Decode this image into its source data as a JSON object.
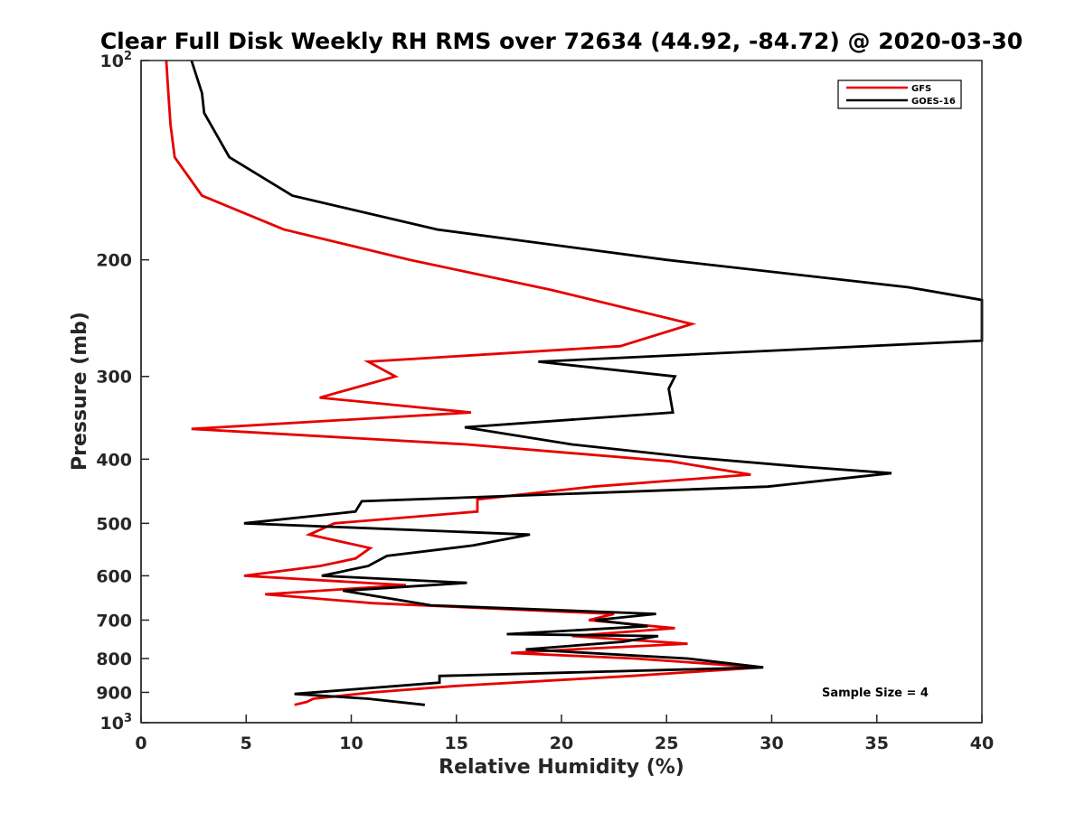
{
  "chart_data": {
    "type": "line",
    "title": "Clear Full Disk Weekly RH RMS over 72634 (44.92, -84.72) @ 2020-03-30",
    "xlabel": "Relative Humidity (%)",
    "ylabel": "Pressure (mb)",
    "xlim": [
      0,
      40
    ],
    "ylim": [
      100,
      1000
    ],
    "yscale": "log",
    "y_reversed": true,
    "xticks": [
      0,
      5,
      10,
      15,
      20,
      25,
      30,
      35,
      40
    ],
    "xtick_labels": [
      "0",
      "5",
      "10",
      "15",
      "20",
      "25",
      "30",
      "35",
      "40"
    ],
    "yticks": [
      {
        "value": 100,
        "base": "10",
        "exp": "2"
      },
      {
        "value": 200,
        "label": "200"
      },
      {
        "value": 300,
        "label": "300"
      },
      {
        "value": 400,
        "label": "400"
      },
      {
        "value": 500,
        "label": "500"
      },
      {
        "value": 600,
        "label": "600"
      },
      {
        "value": 700,
        "label": "700"
      },
      {
        "value": 800,
        "label": "800"
      },
      {
        "value": 900,
        "label": "900"
      },
      {
        "value": 1000,
        "base": "10",
        "exp": "3"
      }
    ],
    "legend_position": "top-right",
    "annotation": "Sample Size = 4",
    "series": [
      {
        "name": "GFS",
        "color": "#e60000",
        "points": [
          [
            1.2,
            100
          ],
          [
            1.3,
            112
          ],
          [
            1.4,
            125
          ],
          [
            1.6,
            140
          ],
          [
            2.9,
            160
          ],
          [
            6.8,
            180
          ],
          [
            12.8,
            200
          ],
          [
            19.5,
            222
          ],
          [
            26.2,
            250
          ],
          [
            22.8,
            270
          ],
          [
            10.8,
            285
          ],
          [
            12.1,
            300
          ],
          [
            8.5,
            323
          ],
          [
            15.7,
            340
          ],
          [
            2.4,
            360
          ],
          [
            15.5,
            380
          ],
          [
            25.2,
            403
          ],
          [
            29.0,
            422
          ],
          [
            21.5,
            440
          ],
          [
            16.0,
            460
          ],
          [
            16.0,
            480
          ],
          [
            9.2,
            500
          ],
          [
            8.0,
            520
          ],
          [
            10.9,
            545
          ],
          [
            10.2,
            565
          ],
          [
            8.5,
            580
          ],
          [
            4.9,
            600
          ],
          [
            12.6,
            620
          ],
          [
            5.9,
            640
          ],
          [
            11.0,
            660
          ],
          [
            22.5,
            685
          ],
          [
            21.3,
            700
          ],
          [
            25.4,
            720
          ],
          [
            20.5,
            740
          ],
          [
            26.0,
            760
          ],
          [
            20.5,
            775
          ],
          [
            17.6,
            785
          ],
          [
            23.5,
            800
          ],
          [
            29.5,
            825
          ],
          [
            23.3,
            850
          ],
          [
            15.0,
            880
          ],
          [
            11.0,
            900
          ],
          [
            8.2,
            920
          ],
          [
            7.9,
            930
          ],
          [
            7.3,
            940
          ]
        ]
      },
      {
        "name": "GOES-16",
        "color": "#000000",
        "points": [
          [
            2.4,
            100
          ],
          [
            2.9,
            112
          ],
          [
            3.0,
            120
          ],
          [
            4.2,
            140
          ],
          [
            7.2,
            160
          ],
          [
            14.1,
            180
          ],
          [
            25.0,
            200
          ],
          [
            36.5,
            220
          ],
          [
            40.0,
            230
          ],
          [
            40.0,
            265
          ],
          [
            18.9,
            285
          ],
          [
            25.4,
            300
          ],
          [
            25.1,
            313
          ],
          [
            25.3,
            340
          ],
          [
            15.4,
            358
          ],
          [
            20.5,
            380
          ],
          [
            26.0,
            397
          ],
          [
            31.2,
            410
          ],
          [
            35.7,
            420
          ],
          [
            29.8,
            440
          ],
          [
            10.5,
            463
          ],
          [
            10.2,
            480
          ],
          [
            4.9,
            500
          ],
          [
            18.5,
            520
          ],
          [
            15.8,
            540
          ],
          [
            11.7,
            560
          ],
          [
            10.8,
            580
          ],
          [
            8.6,
            600
          ],
          [
            15.5,
            615
          ],
          [
            9.6,
            632
          ],
          [
            13.8,
            665
          ],
          [
            24.5,
            685
          ],
          [
            21.6,
            700
          ],
          [
            24.1,
            715
          ],
          [
            17.4,
            735
          ],
          [
            24.6,
            740
          ],
          [
            22.9,
            755
          ],
          [
            18.3,
            775
          ],
          [
            26.0,
            800
          ],
          [
            29.6,
            825
          ],
          [
            14.2,
            850
          ],
          [
            14.2,
            870
          ],
          [
            7.3,
            905
          ],
          [
            10.8,
            920
          ],
          [
            13.5,
            940
          ]
        ]
      }
    ]
  }
}
